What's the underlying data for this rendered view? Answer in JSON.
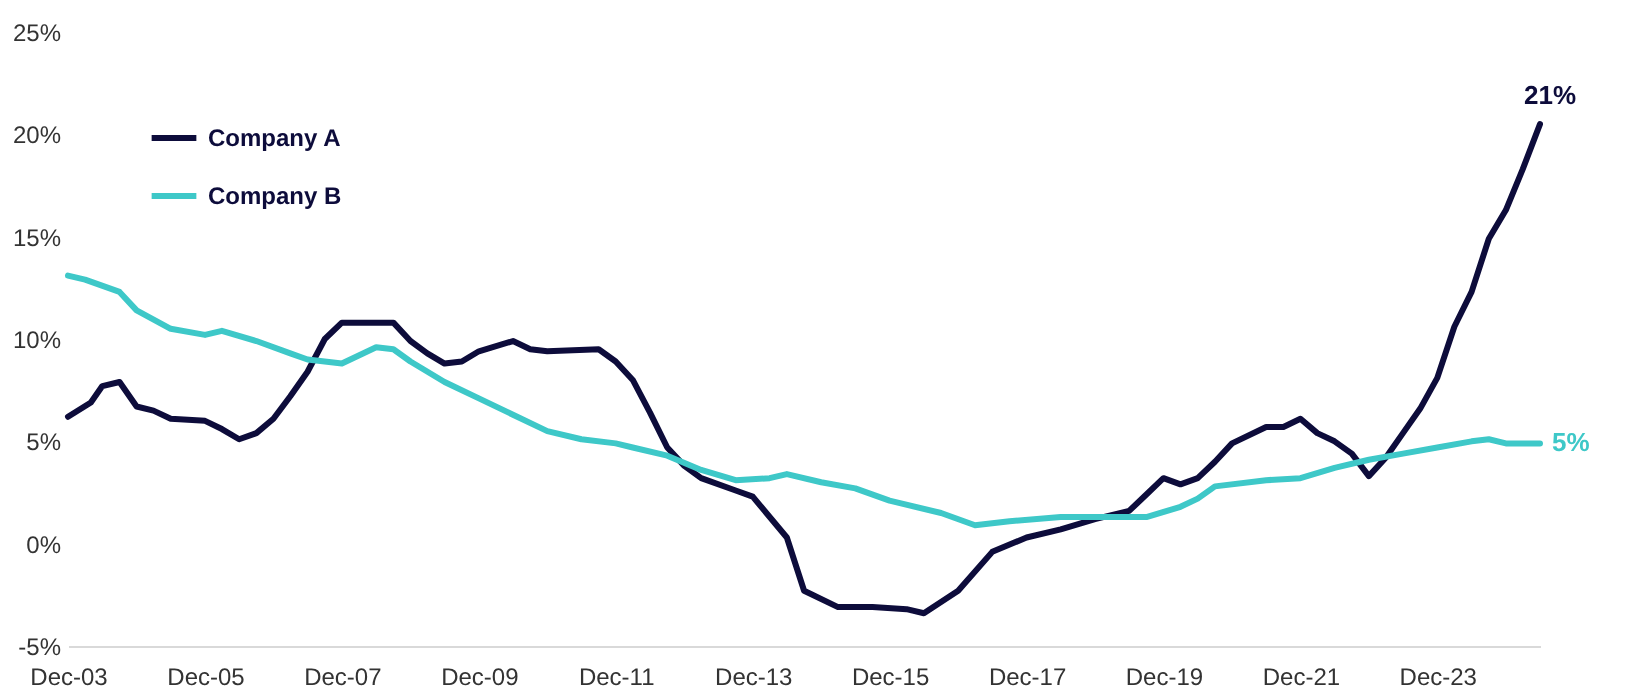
{
  "chart_data": {
    "type": "line",
    "xlim": [
      "2003-12",
      "2025-06"
    ],
    "xticks": [
      {
        "value": "2003-12",
        "label": "Dec-03"
      },
      {
        "value": "2005-12",
        "label": "Dec-05"
      },
      {
        "value": "2007-12",
        "label": "Dec-07"
      },
      {
        "value": "2009-12",
        "label": "Dec-09"
      },
      {
        "value": "2011-12",
        "label": "Dec-11"
      },
      {
        "value": "2013-12",
        "label": "Dec-13"
      },
      {
        "value": "2015-12",
        "label": "Dec-15"
      },
      {
        "value": "2017-12",
        "label": "Dec-17"
      },
      {
        "value": "2019-12",
        "label": "Dec-19"
      },
      {
        "value": "2021-12",
        "label": "Dec-21"
      },
      {
        "value": "2023-12",
        "label": "Dec-23"
      }
    ],
    "ylim": [
      -5,
      25
    ],
    "yticks": [
      {
        "value": -5,
        "label": "-5%"
      },
      {
        "value": 0,
        "label": "0%"
      },
      {
        "value": 5,
        "label": "5%"
      },
      {
        "value": 10,
        "label": "10%"
      },
      {
        "value": 15,
        "label": "15%"
      },
      {
        "value": 20,
        "label": "20%"
      },
      {
        "value": 25,
        "label": "25%"
      }
    ],
    "grid": false,
    "legend": "top left",
    "marker": "none",
    "line_style": "solid",
    "series": [
      {
        "name": "Company A",
        "color": "#0d0c3b",
        "x": [
          "2003-12",
          "2004-04",
          "2004-06",
          "2004-09",
          "2004-12",
          "2005-03",
          "2005-06",
          "2005-12",
          "2006-03",
          "2006-06",
          "2006-09",
          "2006-12",
          "2007-03",
          "2007-06",
          "2007-09",
          "2007-12",
          "2008-09",
          "2008-12",
          "2009-03",
          "2009-06",
          "2009-09",
          "2009-12",
          "2010-06",
          "2010-09",
          "2010-12",
          "2011-09",
          "2011-12",
          "2012-03",
          "2012-06",
          "2012-09",
          "2012-12",
          "2013-03",
          "2013-09",
          "2013-12",
          "2014-06",
          "2014-09",
          "2015-03",
          "2015-09",
          "2016-03",
          "2016-06",
          "2016-12",
          "2017-06",
          "2017-12",
          "2018-06",
          "2018-12",
          "2019-06",
          "2019-09",
          "2019-12",
          "2020-03",
          "2020-06",
          "2020-09",
          "2020-12",
          "2021-06",
          "2021-09",
          "2021-12",
          "2022-03",
          "2022-06",
          "2022-09",
          "2022-12",
          "2023-03",
          "2023-06",
          "2023-09",
          "2023-12",
          "2024-03",
          "2024-06",
          "2024-09",
          "2024-12",
          "2025-03",
          "2025-06"
        ],
        "values": [
          6.2,
          6.9,
          7.7,
          7.9,
          6.7,
          6.5,
          6.1,
          6.0,
          5.6,
          5.1,
          5.4,
          6.1,
          7.2,
          8.4,
          10.0,
          10.8,
          10.8,
          9.9,
          9.3,
          8.8,
          8.9,
          9.4,
          9.9,
          9.5,
          9.4,
          9.5,
          8.9,
          8.0,
          6.4,
          4.7,
          3.8,
          3.2,
          2.6,
          2.3,
          0.3,
          -2.3,
          -3.1,
          -3.1,
          -3.2,
          -3.4,
          -2.3,
          -0.4,
          0.3,
          0.7,
          1.2,
          1.6,
          2.4,
          3.2,
          2.9,
          3.2,
          4.0,
          4.9,
          5.7,
          5.7,
          6.1,
          5.4,
          5.0,
          4.4,
          3.3,
          4.2,
          5.4,
          6.6,
          8.1,
          10.6,
          12.3,
          14.9,
          16.3,
          18.3,
          20.5
        ]
      },
      {
        "name": "Company B",
        "color": "#3ec8c8",
        "x": [
          "2003-12",
          "2004-03",
          "2004-09",
          "2004-12",
          "2005-06",
          "2005-12",
          "2006-03",
          "2006-09",
          "2007-03",
          "2007-06",
          "2007-12",
          "2008-06",
          "2008-09",
          "2008-12",
          "2009-06",
          "2009-12",
          "2010-06",
          "2010-12",
          "2011-06",
          "2011-12",
          "2012-03",
          "2012-09",
          "2013-03",
          "2013-09",
          "2014-03",
          "2014-06",
          "2014-12",
          "2015-06",
          "2015-12",
          "2016-09",
          "2017-03",
          "2017-09",
          "2018-06",
          "2019-03",
          "2019-09",
          "2020-03",
          "2020-06",
          "2020-09",
          "2021-06",
          "2021-12",
          "2022-06",
          "2022-12",
          "2023-06",
          "2023-12",
          "2024-06",
          "2024-09",
          "2024-12",
          "2025-06"
        ],
        "values": [
          13.1,
          12.9,
          12.3,
          11.4,
          10.5,
          10.2,
          10.4,
          9.9,
          9.3,
          9.0,
          8.8,
          9.6,
          9.5,
          8.9,
          7.9,
          7.1,
          6.3,
          5.5,
          5.1,
          4.9,
          4.7,
          4.3,
          3.6,
          3.1,
          3.2,
          3.4,
          3.0,
          2.7,
          2.1,
          1.5,
          0.9,
          1.1,
          1.3,
          1.3,
          1.3,
          1.8,
          2.2,
          2.8,
          3.1,
          3.2,
          3.7,
          4.1,
          4.4,
          4.7,
          5.0,
          5.1,
          4.9,
          4.9
        ]
      }
    ],
    "annotations": [
      {
        "text": "21%",
        "x": "2025-06",
        "y": 20.5
      },
      {
        "text": "5%",
        "x": "2025-06",
        "y": 4.9
      }
    ]
  }
}
